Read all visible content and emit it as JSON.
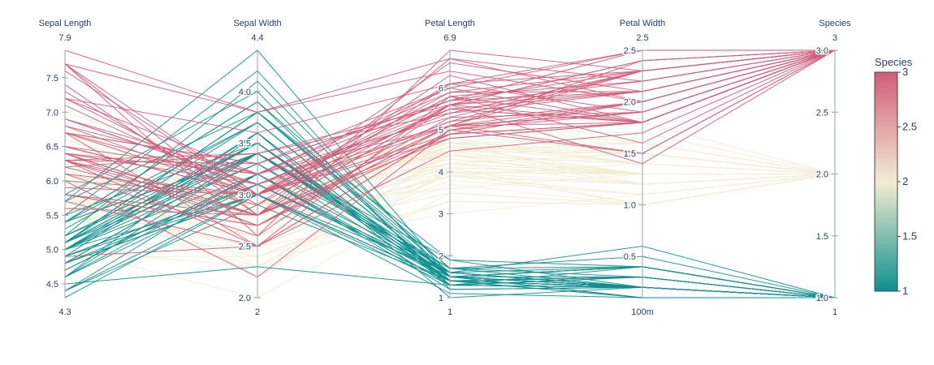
{
  "chart_data": {
    "type": "parallel_coordinates",
    "title": "",
    "dimensions": [
      {
        "label": "Sepal Length",
        "range": [
          4.3,
          7.9
        ],
        "range_labels": [
          "4.3",
          "7.9"
        ],
        "ticks": [
          {
            "v": 4.5,
            "t": "4.5"
          },
          {
            "v": 5.0,
            "t": "5.0"
          },
          {
            "v": 5.5,
            "t": "5.5"
          },
          {
            "v": 6.0,
            "t": "6.0"
          },
          {
            "v": 6.5,
            "t": "6.5"
          },
          {
            "v": 7.0,
            "t": "7.0"
          },
          {
            "v": 7.5,
            "t": "7.5"
          }
        ]
      },
      {
        "label": "Sepal Width",
        "range": [
          2.0,
          4.4
        ],
        "range_labels": [
          "2",
          "4.4"
        ],
        "ticks": [
          {
            "v": 2.0,
            "t": "2.0"
          },
          {
            "v": 2.5,
            "t": "2.5"
          },
          {
            "v": 3.0,
            "t": "3.0"
          },
          {
            "v": 3.5,
            "t": "3.5"
          },
          {
            "v": 4.0,
            "t": "4.0"
          }
        ]
      },
      {
        "label": "Petal Length",
        "range": [
          1.0,
          6.9
        ],
        "range_labels": [
          "1",
          "6.9"
        ],
        "ticks": [
          {
            "v": 1,
            "t": "1"
          },
          {
            "v": 2,
            "t": "2"
          },
          {
            "v": 3,
            "t": "3"
          },
          {
            "v": 4,
            "t": "4"
          },
          {
            "v": 5,
            "t": "5"
          },
          {
            "v": 6,
            "t": "6"
          }
        ]
      },
      {
        "label": "Petal Width",
        "range": [
          0.1,
          2.5
        ],
        "range_labels": [
          "100m",
          "2.5"
        ],
        "ticks": [
          {
            "v": 0.5,
            "t": "0.5"
          },
          {
            "v": 1.0,
            "t": "1.0"
          },
          {
            "v": 1.5,
            "t": "1.5"
          },
          {
            "v": 2.0,
            "t": "2.0"
          },
          {
            "v": 2.5,
            "t": "2.5"
          }
        ]
      },
      {
        "label": "Species",
        "range": [
          1,
          3
        ],
        "range_labels": [
          "1",
          "3"
        ],
        "ticks": [
          {
            "v": 1.0,
            "t": "1.0"
          },
          {
            "v": 1.5,
            "t": "1.5"
          },
          {
            "v": 2.0,
            "t": "2.0"
          },
          {
            "v": 2.5,
            "t": "2.5"
          },
          {
            "v": 3.0,
            "t": "3.0"
          }
        ]
      }
    ],
    "colorscale": [
      [
        "#0f8f8f",
        0
      ],
      [
        "#f2ecd2",
        0.5
      ],
      [
        "#d15b7a",
        1
      ]
    ],
    "colorbar": {
      "title": "Species",
      "range": [
        1,
        3
      ],
      "ticks": [
        "1",
        "1.5",
        "2",
        "2.5",
        "3"
      ],
      "tick_values": [
        1,
        1.5,
        2,
        2.5,
        3
      ]
    },
    "records": [
      [
        5.1,
        3.5,
        1.4,
        0.2,
        1
      ],
      [
        4.9,
        3.0,
        1.4,
        0.2,
        1
      ],
      [
        4.7,
        3.2,
        1.3,
        0.2,
        1
      ],
      [
        4.6,
        3.1,
        1.5,
        0.2,
        1
      ],
      [
        5.0,
        3.6,
        1.4,
        0.2,
        1
      ],
      [
        5.4,
        3.9,
        1.7,
        0.4,
        1
      ],
      [
        4.6,
        3.4,
        1.4,
        0.3,
        1
      ],
      [
        5.0,
        3.4,
        1.5,
        0.2,
        1
      ],
      [
        4.4,
        2.9,
        1.4,
        0.2,
        1
      ],
      [
        4.9,
        3.1,
        1.5,
        0.1,
        1
      ],
      [
        5.4,
        3.7,
        1.5,
        0.2,
        1
      ],
      [
        4.8,
        3.4,
        1.6,
        0.2,
        1
      ],
      [
        4.8,
        3.0,
        1.4,
        0.1,
        1
      ],
      [
        4.3,
        3.0,
        1.1,
        0.1,
        1
      ],
      [
        5.8,
        4.0,
        1.2,
        0.2,
        1
      ],
      [
        5.7,
        4.4,
        1.5,
        0.4,
        1
      ],
      [
        5.4,
        3.9,
        1.3,
        0.4,
        1
      ],
      [
        5.1,
        3.5,
        1.4,
        0.3,
        1
      ],
      [
        5.7,
        3.8,
        1.7,
        0.3,
        1
      ],
      [
        5.1,
        3.8,
        1.5,
        0.3,
        1
      ],
      [
        5.4,
        3.4,
        1.7,
        0.2,
        1
      ],
      [
        5.1,
        3.7,
        1.5,
        0.4,
        1
      ],
      [
        4.6,
        3.6,
        1.0,
        0.2,
        1
      ],
      [
        5.1,
        3.3,
        1.7,
        0.5,
        1
      ],
      [
        4.8,
        3.4,
        1.9,
        0.2,
        1
      ],
      [
        5.0,
        3.0,
        1.6,
        0.2,
        1
      ],
      [
        5.0,
        3.4,
        1.6,
        0.4,
        1
      ],
      [
        5.2,
        3.5,
        1.5,
        0.2,
        1
      ],
      [
        5.2,
        3.4,
        1.4,
        0.2,
        1
      ],
      [
        4.7,
        3.2,
        1.6,
        0.2,
        1
      ],
      [
        4.8,
        3.1,
        1.6,
        0.2,
        1
      ],
      [
        5.4,
        3.4,
        1.5,
        0.4,
        1
      ],
      [
        5.2,
        4.1,
        1.5,
        0.1,
        1
      ],
      [
        5.5,
        4.2,
        1.4,
        0.2,
        1
      ],
      [
        4.9,
        3.1,
        1.5,
        0.2,
        1
      ],
      [
        5.0,
        3.2,
        1.2,
        0.2,
        1
      ],
      [
        5.5,
        3.5,
        1.3,
        0.2,
        1
      ],
      [
        4.9,
        3.6,
        1.4,
        0.1,
        1
      ],
      [
        4.4,
        3.0,
        1.3,
        0.2,
        1
      ],
      [
        5.1,
        3.4,
        1.5,
        0.2,
        1
      ],
      [
        5.0,
        3.5,
        1.3,
        0.3,
        1
      ],
      [
        4.5,
        2.3,
        1.3,
        0.3,
        1
      ],
      [
        4.4,
        3.2,
        1.3,
        0.2,
        1
      ],
      [
        5.0,
        3.5,
        1.6,
        0.6,
        1
      ],
      [
        5.1,
        3.8,
        1.9,
        0.4,
        1
      ],
      [
        4.8,
        3.0,
        1.4,
        0.3,
        1
      ],
      [
        5.1,
        3.8,
        1.6,
        0.2,
        1
      ],
      [
        4.6,
        3.2,
        1.4,
        0.2,
        1
      ],
      [
        5.3,
        3.7,
        1.5,
        0.2,
        1
      ],
      [
        5.0,
        3.3,
        1.4,
        0.2,
        1
      ],
      [
        7.0,
        3.2,
        4.7,
        1.4,
        2
      ],
      [
        6.4,
        3.2,
        4.5,
        1.5,
        2
      ],
      [
        6.9,
        3.1,
        4.9,
        1.5,
        2
      ],
      [
        5.5,
        2.3,
        4.0,
        1.3,
        2
      ],
      [
        6.5,
        2.8,
        4.6,
        1.5,
        2
      ],
      [
        5.7,
        2.8,
        4.5,
        1.3,
        2
      ],
      [
        6.3,
        3.3,
        4.7,
        1.6,
        2
      ],
      [
        4.9,
        2.4,
        3.3,
        1.0,
        2
      ],
      [
        6.6,
        2.9,
        4.6,
        1.3,
        2
      ],
      [
        5.2,
        2.7,
        3.9,
        1.4,
        2
      ],
      [
        5.0,
        2.0,
        3.5,
        1.0,
        2
      ],
      [
        5.9,
        3.0,
        4.2,
        1.5,
        2
      ],
      [
        6.0,
        2.2,
        4.0,
        1.0,
        2
      ],
      [
        6.1,
        2.9,
        4.7,
        1.4,
        2
      ],
      [
        5.6,
        2.9,
        3.6,
        1.3,
        2
      ],
      [
        6.7,
        3.1,
        4.4,
        1.4,
        2
      ],
      [
        5.6,
        3.0,
        4.5,
        1.5,
        2
      ],
      [
        5.8,
        2.7,
        4.1,
        1.0,
        2
      ],
      [
        6.2,
        2.2,
        4.5,
        1.5,
        2
      ],
      [
        5.6,
        2.5,
        3.9,
        1.1,
        2
      ],
      [
        5.9,
        3.2,
        4.8,
        1.8,
        2
      ],
      [
        6.1,
        2.8,
        4.0,
        1.3,
        2
      ],
      [
        6.3,
        2.5,
        4.9,
        1.5,
        2
      ],
      [
        6.1,
        2.8,
        4.7,
        1.2,
        2
      ],
      [
        6.4,
        2.9,
        4.3,
        1.3,
        2
      ],
      [
        6.6,
        3.0,
        4.4,
        1.4,
        2
      ],
      [
        6.8,
        2.8,
        4.8,
        1.4,
        2
      ],
      [
        6.7,
        3.0,
        5.0,
        1.7,
        2
      ],
      [
        6.0,
        2.9,
        4.5,
        1.5,
        2
      ],
      [
        5.7,
        2.6,
        3.5,
        1.0,
        2
      ],
      [
        5.5,
        2.4,
        3.8,
        1.1,
        2
      ],
      [
        5.5,
        2.4,
        3.7,
        1.0,
        2
      ],
      [
        5.8,
        2.7,
        3.9,
        1.2,
        2
      ],
      [
        6.0,
        2.7,
        5.1,
        1.6,
        2
      ],
      [
        5.4,
        3.0,
        4.5,
        1.5,
        2
      ],
      [
        6.0,
        3.4,
        4.5,
        1.6,
        2
      ],
      [
        6.7,
        3.1,
        4.7,
        1.5,
        2
      ],
      [
        6.3,
        2.3,
        4.4,
        1.3,
        2
      ],
      [
        5.6,
        3.0,
        4.1,
        1.3,
        2
      ],
      [
        5.5,
        2.5,
        4.0,
        1.3,
        2
      ],
      [
        5.5,
        2.6,
        4.4,
        1.2,
        2
      ],
      [
        6.1,
        3.0,
        4.6,
        1.4,
        2
      ],
      [
        5.8,
        2.6,
        4.0,
        1.2,
        2
      ],
      [
        5.0,
        2.3,
        3.3,
        1.0,
        2
      ],
      [
        5.6,
        2.7,
        4.2,
        1.3,
        2
      ],
      [
        5.7,
        3.0,
        4.2,
        1.2,
        2
      ],
      [
        5.7,
        2.9,
        4.2,
        1.3,
        2
      ],
      [
        6.2,
        2.9,
        4.3,
        1.3,
        2
      ],
      [
        5.1,
        2.5,
        3.0,
        1.1,
        2
      ],
      [
        5.7,
        2.8,
        4.1,
        1.3,
        2
      ],
      [
        6.3,
        3.3,
        6.0,
        2.5,
        3
      ],
      [
        5.8,
        2.7,
        5.1,
        1.9,
        3
      ],
      [
        7.1,
        3.0,
        5.9,
        2.1,
        3
      ],
      [
        6.3,
        2.9,
        5.6,
        1.8,
        3
      ],
      [
        6.5,
        3.0,
        5.8,
        2.2,
        3
      ],
      [
        7.6,
        3.0,
        6.6,
        2.1,
        3
      ],
      [
        4.9,
        2.5,
        4.5,
        1.7,
        3
      ],
      [
        7.3,
        2.9,
        6.3,
        1.8,
        3
      ],
      [
        6.7,
        2.5,
        5.8,
        1.8,
        3
      ],
      [
        7.2,
        3.6,
        6.1,
        2.5,
        3
      ],
      [
        6.5,
        3.2,
        5.1,
        2.0,
        3
      ],
      [
        6.4,
        2.7,
        5.3,
        1.9,
        3
      ],
      [
        6.8,
        3.0,
        5.5,
        2.1,
        3
      ],
      [
        5.7,
        2.5,
        5.0,
        2.0,
        3
      ],
      [
        5.8,
        2.8,
        5.1,
        2.4,
        3
      ],
      [
        6.4,
        3.2,
        5.3,
        2.3,
        3
      ],
      [
        6.5,
        3.0,
        5.5,
        1.8,
        3
      ],
      [
        7.7,
        3.8,
        6.7,
        2.2,
        3
      ],
      [
        7.7,
        2.6,
        6.9,
        2.3,
        3
      ],
      [
        6.0,
        2.2,
        5.0,
        1.5,
        3
      ],
      [
        6.9,
        3.2,
        5.7,
        2.3,
        3
      ],
      [
        5.6,
        2.8,
        4.9,
        2.0,
        3
      ],
      [
        7.7,
        2.8,
        6.7,
        2.0,
        3
      ],
      [
        6.3,
        2.7,
        4.9,
        1.8,
        3
      ],
      [
        6.7,
        3.3,
        5.7,
        2.1,
        3
      ],
      [
        7.2,
        3.2,
        6.0,
        1.8,
        3
      ],
      [
        6.2,
        2.8,
        4.8,
        1.8,
        3
      ],
      [
        6.1,
        3.0,
        4.9,
        1.8,
        3
      ],
      [
        6.4,
        2.8,
        5.6,
        2.1,
        3
      ],
      [
        7.2,
        3.0,
        5.8,
        1.6,
        3
      ],
      [
        7.4,
        2.8,
        6.1,
        1.9,
        3
      ],
      [
        7.9,
        3.8,
        6.4,
        2.0,
        3
      ],
      [
        6.4,
        2.8,
        5.6,
        2.2,
        3
      ],
      [
        6.3,
        2.8,
        5.1,
        1.5,
        3
      ],
      [
        6.1,
        2.6,
        5.6,
        1.4,
        3
      ],
      [
        7.7,
        3.0,
        6.1,
        2.3,
        3
      ],
      [
        6.3,
        3.4,
        5.6,
        2.4,
        3
      ],
      [
        6.4,
        3.1,
        5.5,
        1.8,
        3
      ],
      [
        6.0,
        3.0,
        4.8,
        1.8,
        3
      ],
      [
        6.9,
        3.1,
        5.4,
        2.1,
        3
      ],
      [
        6.7,
        3.1,
        5.6,
        2.4,
        3
      ],
      [
        6.9,
        3.1,
        5.1,
        2.3,
        3
      ],
      [
        5.8,
        2.7,
        5.1,
        1.9,
        3
      ],
      [
        6.8,
        3.2,
        5.9,
        2.3,
        3
      ],
      [
        6.7,
        3.3,
        5.7,
        2.5,
        3
      ],
      [
        6.7,
        3.0,
        5.2,
        2.3,
        3
      ],
      [
        6.3,
        2.5,
        5.0,
        1.9,
        3
      ],
      [
        6.5,
        3.0,
        5.2,
        2.0,
        3
      ],
      [
        6.2,
        3.4,
        5.4,
        2.3,
        3
      ],
      [
        5.9,
        3.0,
        5.1,
        1.8,
        3
      ]
    ]
  }
}
